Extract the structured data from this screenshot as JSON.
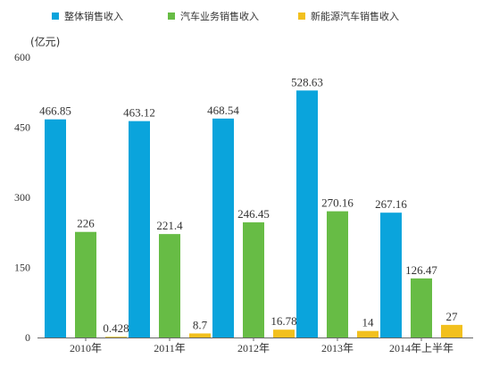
{
  "chart_data": {
    "type": "bar",
    "unit_label": "(亿元)",
    "categories": [
      "2010年",
      "2011年",
      "2012年",
      "2013年",
      "2014年上半年"
    ],
    "y_ticks": [
      0,
      150,
      300,
      450,
      600
    ],
    "ylim": [
      0,
      600
    ],
    "grid": false,
    "legend_position": "top",
    "series": [
      {
        "name": "整体销售收入",
        "color": "#0aa4dc",
        "values": [
          466.85,
          463.12,
          468.54,
          528.63,
          267.16
        ],
        "labels": [
          "466.85",
          "463.12",
          "468.54",
          "528.63",
          "267.16"
        ]
      },
      {
        "name": "汽车业务销售收入",
        "color": "#67bc45",
        "values": [
          226,
          221.4,
          246.45,
          270.16,
          126.47
        ],
        "labels": [
          "226",
          "221.4",
          "246.45",
          "270.16",
          "126.47"
        ]
      },
      {
        "name": "新能源汽车销售收入",
        "color": "#f2c01e",
        "values": [
          0.428,
          8.7,
          16.78,
          14,
          27
        ],
        "labels": [
          "0.428",
          "8.7",
          "16.78",
          "14",
          "27"
        ]
      }
    ]
  }
}
